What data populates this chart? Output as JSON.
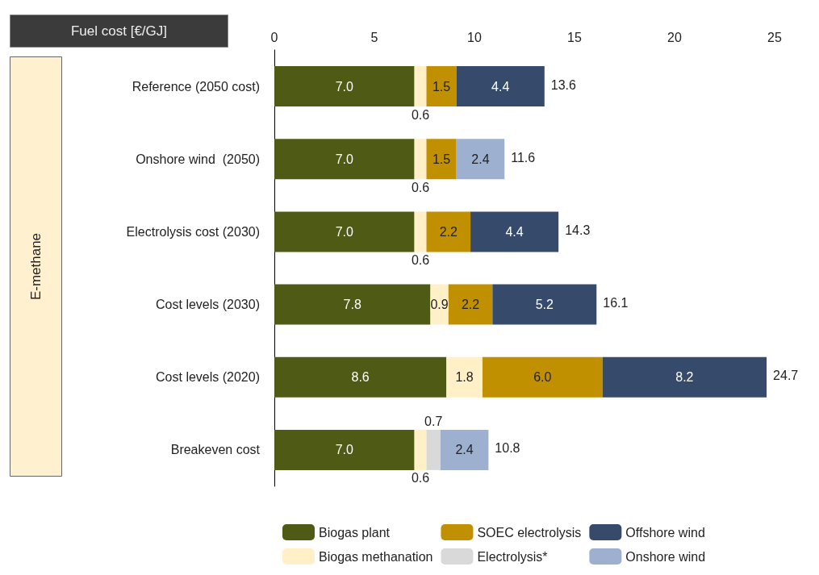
{
  "chart_data": {
    "type": "bar",
    "orientation": "horizontal",
    "stacked": true,
    "xlabel": "Fuel cost [€/GJ]",
    "annotations": [
      "E-methane"
    ],
    "categories": [
      "Reference (2050 cost)",
      "Onshore wind  (2050)",
      "Electrolysis cost (2030)",
      "Cost levels (2030)",
      "Cost levels (2020)",
      "Breakeven cost"
    ],
    "series": [
      {
        "name": "Biogas plant",
        "color": "#4f5a14",
        "values": [
          7.0,
          7.0,
          7.0,
          7.8,
          8.6,
          7.0
        ],
        "value_labels": [
          "7.0",
          "7.0",
          "7.0",
          "7.8",
          "8.6",
          "7.0"
        ]
      },
      {
        "name": "Biogas methanation",
        "color": "#fff0c8",
        "values": [
          0.6,
          0.6,
          0.6,
          0.9,
          1.8,
          0.6
        ],
        "value_labels": [
          "0.6",
          "0.6",
          "0.6",
          "0.9",
          "1.8",
          "0.6"
        ]
      },
      {
        "name": "SOEC electrolysis",
        "color": "#c09000",
        "values": [
          1.5,
          1.5,
          2.2,
          2.2,
          6.0,
          null
        ],
        "value_labels": [
          "1.5",
          "1.5",
          "2.2",
          "2.2",
          "6.0",
          null
        ]
      },
      {
        "name": "Electrolysis*",
        "color": "#d9d9d9",
        "values": [
          null,
          null,
          null,
          null,
          null,
          0.7
        ],
        "value_labels": [
          null,
          null,
          null,
          null,
          null,
          "0.7"
        ]
      },
      {
        "name": "Offshore wind",
        "color": "#364a6b",
        "values": [
          4.4,
          null,
          4.4,
          5.2,
          8.2,
          null
        ],
        "value_labels": [
          "4.4",
          null,
          "4.4",
          "5.2",
          "8.2",
          null
        ]
      },
      {
        "name": "Onshore wind",
        "color": "#9eb0d0",
        "values": [
          null,
          2.4,
          null,
          null,
          null,
          2.4
        ],
        "value_labels": [
          null,
          "2.4",
          null,
          null,
          null,
          "2.4"
        ]
      }
    ],
    "totals": [
      "13.6",
      "11.6",
      "14.3",
      "16.1",
      "24.7",
      "10.8"
    ],
    "xlim": [
      0,
      25
    ],
    "xticks": [
      0,
      5,
      10,
      15,
      20,
      25
    ],
    "grid": false,
    "legend": "bottom"
  }
}
